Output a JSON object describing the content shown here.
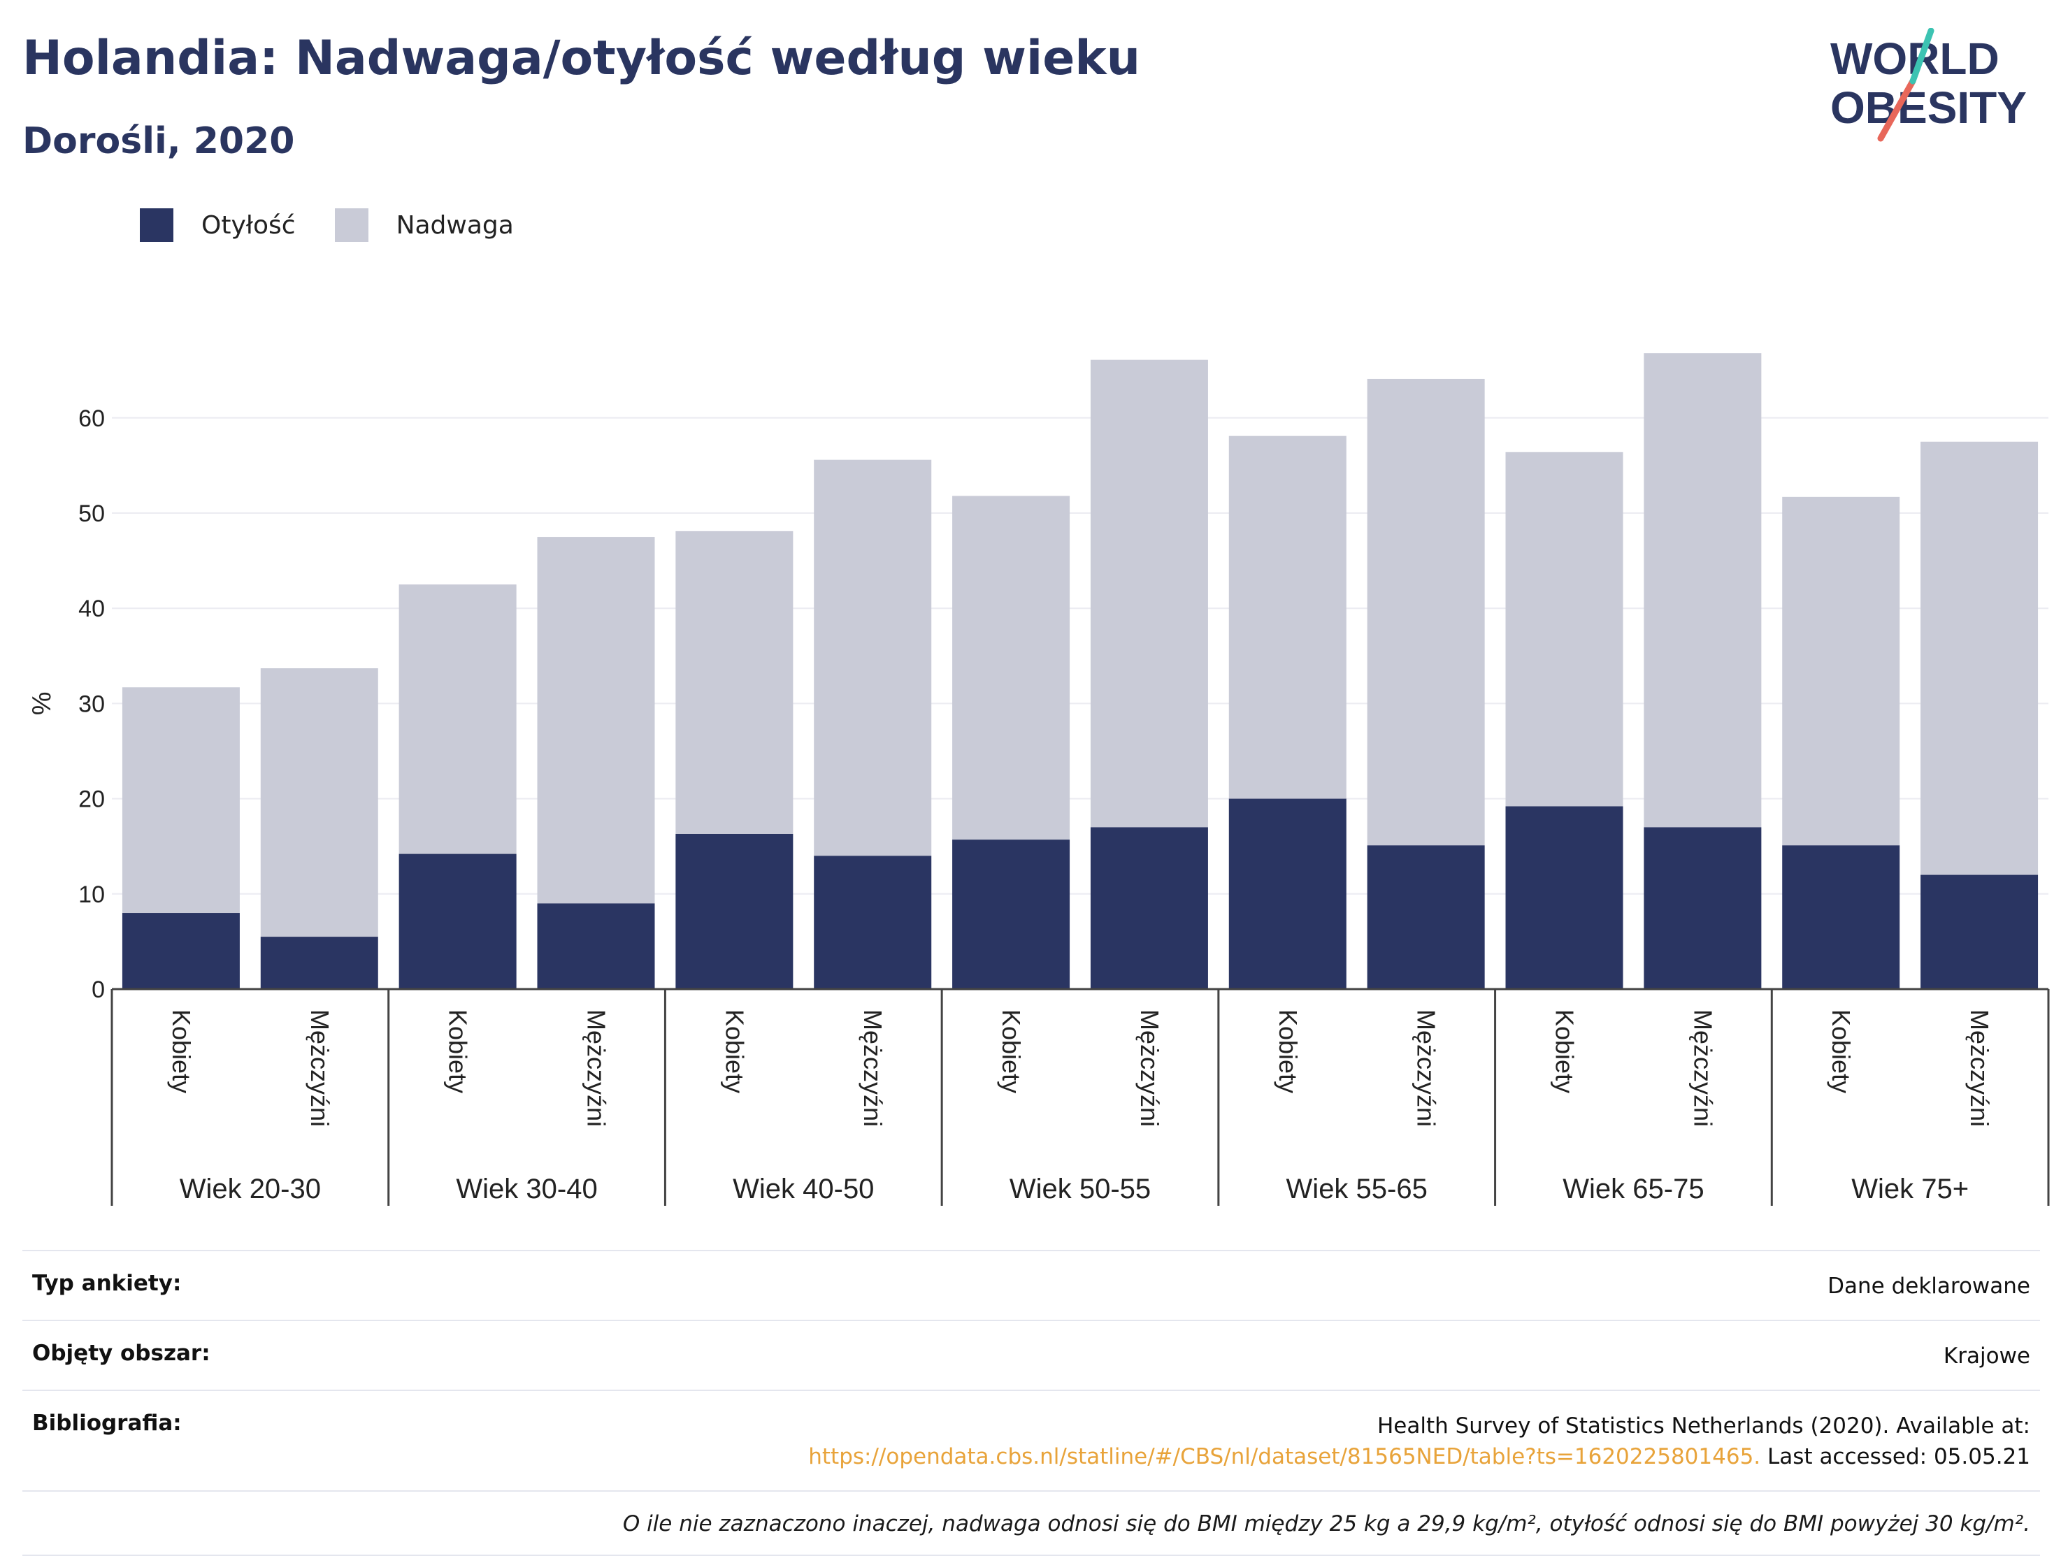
{
  "header": {
    "title": "Holandia: Nadwaga/otyłość według wieku",
    "subtitle": "Dorośli, 2020"
  },
  "logo": {
    "line1": "WORLD",
    "line2": "OBESITY"
  },
  "legend": [
    {
      "label": "Otyłość",
      "color": "#2a3562"
    },
    {
      "label": "Nadwaga",
      "color": "#c9cbd7"
    }
  ],
  "chart_data": {
    "type": "bar",
    "stacked": true,
    "ylabel": "%",
    "ylim": [
      0,
      70
    ],
    "yticks": [
      0,
      10,
      20,
      30,
      40,
      50,
      60
    ],
    "grid": true,
    "groups": [
      "Wiek 20-30",
      "Wiek 30-40",
      "Wiek 40-50",
      "Wiek 50-55",
      "Wiek 55-65",
      "Wiek 65-75",
      "Wiek 75+"
    ],
    "subcategories": [
      "Kobiety",
      "Mężczyźni"
    ],
    "series": [
      {
        "name": "Otyłość",
        "color": "#2a3562",
        "values": [
          8,
          5.5,
          14.2,
          9,
          16.3,
          14,
          15.7,
          17,
          20,
          15.1,
          19.2,
          17,
          15.1,
          12
        ]
      },
      {
        "name": "Nadwaga",
        "color": "#c9cbd7",
        "values": [
          23.7,
          28.2,
          28.3,
          38.5,
          31.8,
          41.6,
          36.1,
          49.1,
          38.1,
          49,
          37.2,
          49.8,
          36.6,
          45.5
        ]
      }
    ]
  },
  "footer": {
    "survey_label": "Typ ankiety:",
    "survey_value": "Dane deklarowane",
    "area_label": "Objęty obszar:",
    "area_value": "Krajowe",
    "bib_label": "Bibliografia:",
    "bib_line1": "Health Survey of Statistics Netherlands (2020). Available at:",
    "bib_link": "https://opendata.cbs.nl/statline/#/CBS/nl/dataset/81565NED/table?ts=1620225801465.",
    "bib_accessed": " Last accessed: 05.05.21",
    "note": "O ile nie zaznaczono inaczej, nadwaga odnosi się do BMI między 25 kg a 29,9 kg/m², otyłość odnosi się do BMI powyżej 30 kg/m²."
  }
}
